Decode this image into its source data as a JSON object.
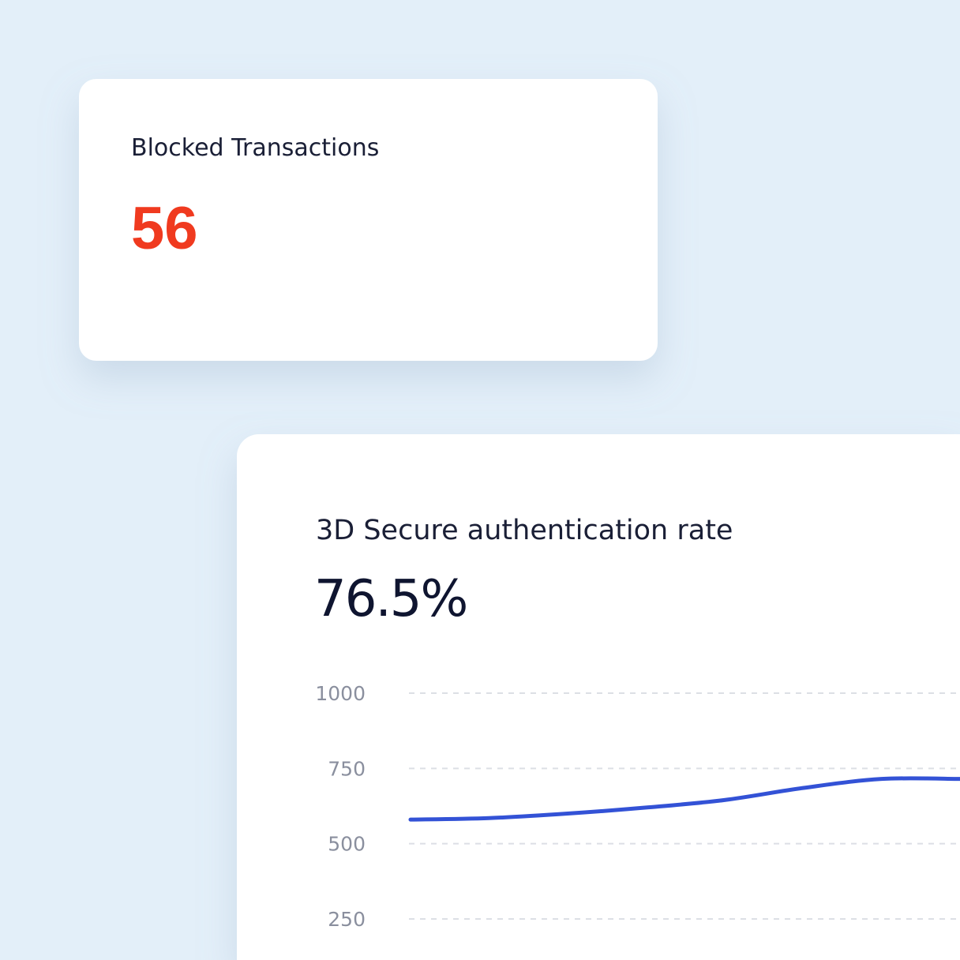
{
  "blocked_card": {
    "title": "Blocked Transactions",
    "value": "56"
  },
  "rate_card": {
    "title": "3D Secure authentication rate",
    "value": "76.5%"
  },
  "chart_data": {
    "type": "line",
    "categories": [
      null,
      null,
      null,
      null,
      null,
      null,
      null,
      null
    ],
    "series": [
      {
        "color": "#3352d6",
        "values": [
          580,
          585,
          600,
          620,
          645,
          685,
          715,
          715
        ]
      }
    ],
    "ylim": [
      250,
      1000
    ],
    "yticks": [
      250,
      500,
      750,
      1000
    ],
    "grid": true
  }
}
